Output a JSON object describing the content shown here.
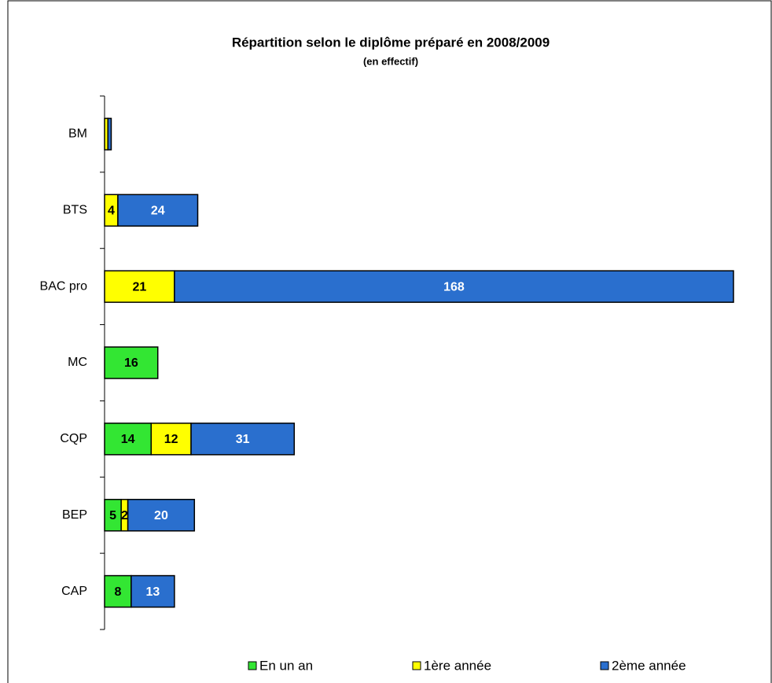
{
  "chart_data": {
    "type": "stacked-barh",
    "title": "Répartition selon le diplôme préparé en 2008/2009",
    "subtitle": "(en effectif)",
    "categories": [
      "BM",
      "BTS",
      "BAC pro",
      "MC",
      "CQP",
      "BEP",
      "CAP"
    ],
    "series": [
      {
        "name": "En un an",
        "color": "#33e633",
        "values": [
          0,
          0,
          0,
          16,
          14,
          5,
          8
        ]
      },
      {
        "name": "1ère année",
        "color": "#ffff00",
        "values": [
          1,
          4,
          21,
          0,
          12,
          2,
          0
        ]
      },
      {
        "name": "2ème année",
        "color": "#2a6fce",
        "values": [
          1,
          24,
          168,
          0,
          31,
          20,
          13
        ]
      }
    ],
    "legend": "bottom"
  }
}
